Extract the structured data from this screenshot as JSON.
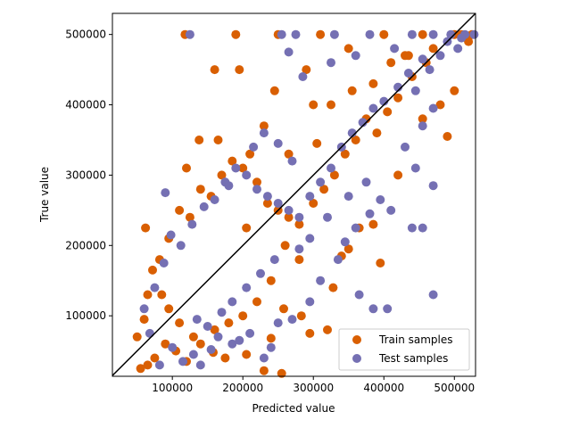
{
  "chart_data": {
    "type": "scatter",
    "title": "",
    "xlabel": "Predicted value",
    "ylabel": "True value",
    "xlim": [
      15000,
      530000
    ],
    "ylim": [
      14000,
      530000
    ],
    "x_ticks": [
      100000,
      200000,
      300000,
      400000,
      500000
    ],
    "y_ticks": [
      100000,
      200000,
      300000,
      400000,
      500000
    ],
    "tick_labels": {
      "x": [
        "100000",
        "200000",
        "300000",
        "400000",
        "500000"
      ],
      "y": [
        "100000",
        "200000",
        "300000",
        "400000",
        "500000"
      ]
    },
    "grid": false,
    "legend_position": "lower-right",
    "reference_line": {
      "from": [
        15000,
        15000
      ],
      "to": [
        530000,
        530000
      ],
      "color": "#000000"
    },
    "series": [
      {
        "name": "Train samples",
        "color": "#d95f02",
        "points": [
          [
            62000,
            225000
          ],
          [
            118000,
            500000
          ],
          [
            138000,
            350000
          ],
          [
            165000,
            350000
          ],
          [
            190000,
            500000
          ],
          [
            250000,
            500000
          ],
          [
            310000,
            500000
          ],
          [
            400000,
            500000
          ],
          [
            455000,
            500000
          ],
          [
            500000,
            500000
          ],
          [
            160000,
            450000
          ],
          [
            195000,
            450000
          ],
          [
            245000,
            420000
          ],
          [
            290000,
            450000
          ],
          [
            350000,
            480000
          ],
          [
            200000,
            310000
          ],
          [
            230000,
            370000
          ],
          [
            120000,
            310000
          ],
          [
            300000,
            400000
          ],
          [
            430000,
            470000
          ],
          [
            480000,
            400000
          ],
          [
            500000,
            420000
          ],
          [
            520000,
            490000
          ],
          [
            455000,
            380000
          ],
          [
            490000,
            355000
          ],
          [
            420000,
            300000
          ],
          [
            395000,
            175000
          ],
          [
            385000,
            230000
          ],
          [
            365000,
            225000
          ],
          [
            350000,
            195000
          ],
          [
            340000,
            185000
          ],
          [
            328000,
            140000
          ],
          [
            320000,
            80000
          ],
          [
            295000,
            75000
          ],
          [
            283000,
            100000
          ],
          [
            258000,
            110000
          ],
          [
            240000,
            68000
          ],
          [
            205000,
            45000
          ],
          [
            175000,
            40000
          ],
          [
            158000,
            48000
          ],
          [
            140000,
            60000
          ],
          [
            120000,
            35000
          ],
          [
            105000,
            50000
          ],
          [
            90000,
            60000
          ],
          [
            75000,
            40000
          ],
          [
            65000,
            30000
          ],
          [
            55000,
            25000
          ],
          [
            50000,
            70000
          ],
          [
            60000,
            95000
          ],
          [
            65000,
            130000
          ],
          [
            72000,
            165000
          ],
          [
            82000,
            180000
          ],
          [
            95000,
            210000
          ],
          [
            110000,
            250000
          ],
          [
            125000,
            240000
          ],
          [
            140000,
            280000
          ],
          [
            155000,
            270000
          ],
          [
            170000,
            300000
          ],
          [
            185000,
            320000
          ],
          [
            210000,
            330000
          ],
          [
            220000,
            290000
          ],
          [
            235000,
            260000
          ],
          [
            250000,
            250000
          ],
          [
            265000,
            240000
          ],
          [
            280000,
            230000
          ],
          [
            300000,
            260000
          ],
          [
            315000,
            280000
          ],
          [
            330000,
            300000
          ],
          [
            345000,
            330000
          ],
          [
            360000,
            350000
          ],
          [
            375000,
            380000
          ],
          [
            390000,
            360000
          ],
          [
            405000,
            390000
          ],
          [
            420000,
            410000
          ],
          [
            440000,
            440000
          ],
          [
            460000,
            460000
          ],
          [
            470000,
            480000
          ],
          [
            510000,
            500000
          ],
          [
            525000,
            500000
          ],
          [
            280000,
            180000
          ],
          [
            260000,
            200000
          ],
          [
            240000,
            150000
          ],
          [
            220000,
            120000
          ],
          [
            200000,
            100000
          ],
          [
            180000,
            90000
          ],
          [
            160000,
            80000
          ],
          [
            130000,
            70000
          ],
          [
            110000,
            90000
          ],
          [
            95000,
            110000
          ],
          [
            85000,
            130000
          ],
          [
            230000,
            22000
          ],
          [
            255000,
            18000
          ],
          [
            205000,
            225000
          ],
          [
            265000,
            330000
          ],
          [
            305000,
            345000
          ],
          [
            325000,
            400000
          ],
          [
            355000,
            420000
          ],
          [
            385000,
            430000
          ],
          [
            410000,
            460000
          ],
          [
            435000,
            470000
          ]
        ]
      },
      {
        "name": "Test samples",
        "color": "#7570b3",
        "points": [
          [
            125000,
            500000
          ],
          [
            255000,
            500000
          ],
          [
            275000,
            500000
          ],
          [
            330000,
            500000
          ],
          [
            380000,
            500000
          ],
          [
            440000,
            500000
          ],
          [
            470000,
            500000
          ],
          [
            495000,
            500000
          ],
          [
            515000,
            500000
          ],
          [
            528000,
            500000
          ],
          [
            265000,
            475000
          ],
          [
            285000,
            440000
          ],
          [
            325000,
            460000
          ],
          [
            360000,
            470000
          ],
          [
            415000,
            480000
          ],
          [
            465000,
            450000
          ],
          [
            480000,
            470000
          ],
          [
            505000,
            480000
          ],
          [
            445000,
            420000
          ],
          [
            470000,
            395000
          ],
          [
            455000,
            370000
          ],
          [
            430000,
            340000
          ],
          [
            445000,
            310000
          ],
          [
            470000,
            285000
          ],
          [
            440000,
            225000
          ],
          [
            455000,
            225000
          ],
          [
            410000,
            250000
          ],
          [
            395000,
            265000
          ],
          [
            380000,
            245000
          ],
          [
            360000,
            225000
          ],
          [
            345000,
            205000
          ],
          [
            335000,
            180000
          ],
          [
            405000,
            110000
          ],
          [
            385000,
            110000
          ],
          [
            365000,
            130000
          ],
          [
            310000,
            150000
          ],
          [
            295000,
            120000
          ],
          [
            270000,
            95000
          ],
          [
            250000,
            90000
          ],
          [
            240000,
            55000
          ],
          [
            230000,
            40000
          ],
          [
            195000,
            65000
          ],
          [
            155000,
            52000
          ],
          [
            140000,
            30000
          ],
          [
            130000,
            45000
          ],
          [
            115000,
            35000
          ],
          [
            100000,
            55000
          ],
          [
            82000,
            30000
          ],
          [
            68000,
            75000
          ],
          [
            60000,
            110000
          ],
          [
            75000,
            140000
          ],
          [
            88000,
            175000
          ],
          [
            90000,
            275000
          ],
          [
            98000,
            215000
          ],
          [
            112000,
            200000
          ],
          [
            128000,
            230000
          ],
          [
            145000,
            255000
          ],
          [
            160000,
            265000
          ],
          [
            175000,
            290000
          ],
          [
            190000,
            310000
          ],
          [
            205000,
            300000
          ],
          [
            220000,
            280000
          ],
          [
            235000,
            270000
          ],
          [
            250000,
            260000
          ],
          [
            265000,
            250000
          ],
          [
            280000,
            240000
          ],
          [
            295000,
            270000
          ],
          [
            310000,
            290000
          ],
          [
            325000,
            310000
          ],
          [
            340000,
            340000
          ],
          [
            355000,
            360000
          ],
          [
            370000,
            375000
          ],
          [
            385000,
            395000
          ],
          [
            400000,
            405000
          ],
          [
            420000,
            425000
          ],
          [
            435000,
            445000
          ],
          [
            455000,
            465000
          ],
          [
            490000,
            490000
          ],
          [
            510000,
            495000
          ],
          [
            470000,
            130000
          ],
          [
            210000,
            75000
          ],
          [
            185000,
            60000
          ],
          [
            165000,
            70000
          ],
          [
            150000,
            85000
          ],
          [
            135000,
            95000
          ],
          [
            245000,
            180000
          ],
          [
            225000,
            160000
          ],
          [
            205000,
            140000
          ],
          [
            185000,
            120000
          ],
          [
            170000,
            105000
          ],
          [
            295000,
            210000
          ],
          [
            280000,
            195000
          ],
          [
            320000,
            240000
          ],
          [
            350000,
            270000
          ],
          [
            375000,
            290000
          ],
          [
            270000,
            320000
          ],
          [
            250000,
            345000
          ],
          [
            230000,
            360000
          ],
          [
            215000,
            340000
          ],
          [
            180000,
            285000
          ]
        ]
      }
    ]
  }
}
